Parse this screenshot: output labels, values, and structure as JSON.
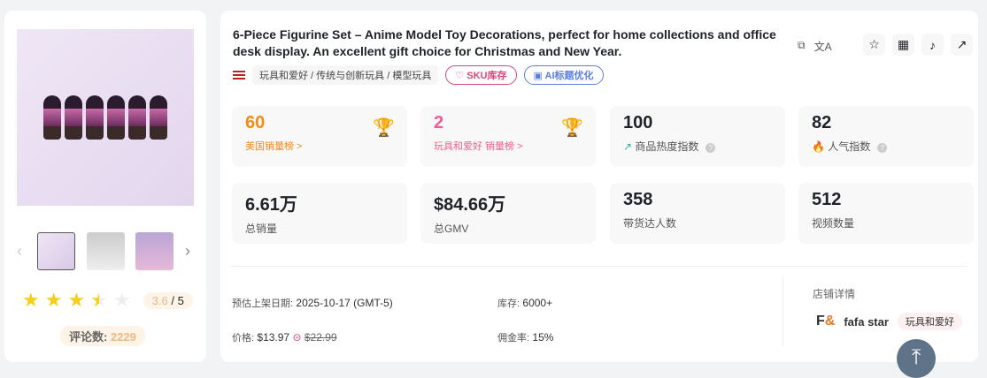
{
  "gallery": {
    "thumb_count": 3,
    "rating": "3.6",
    "rating_max": "/ 5",
    "reviews_label": "评论数:",
    "reviews": "2229"
  },
  "product": {
    "title": "6-Piece Figurine Set – Anime Model Toy Decorations, perfect for home collections and office desk display. An excellent gift choice for Christmas and New Year.",
    "category": "玩具和爱好 / 传统与创新玩具 / 模型玩具",
    "sku_label": "SKU库存",
    "ai_label": "AI标题优化"
  },
  "actions": [
    "star-icon",
    "qr-code-icon",
    "tiktok-icon",
    "external-link-icon"
  ],
  "stats": [
    {
      "value": "60",
      "label": "美国销量榜 >",
      "color": "#f08c1a"
    },
    {
      "value": "2",
      "label": "玩具和爱好 销量榜 >",
      "color": "#ef5f8a"
    },
    {
      "value": "100",
      "label": "商品热度指数"
    },
    {
      "value": "82",
      "label": "人气指数"
    },
    {
      "value": "6.61万",
      "label": "总销量"
    },
    {
      "value": "$84.66万",
      "label": "总GMV"
    },
    {
      "value": "358",
      "label": "带货达人数"
    },
    {
      "value": "512",
      "label": "视频数量"
    }
  ],
  "details": {
    "launch_label": "预估上架日期:",
    "launch": "2025-10-17 (GMT-5)",
    "stock_label": "库存:",
    "stock": "6000+",
    "price_label": "价格:",
    "price": "$13.97",
    "orig_price": "$22.99",
    "commission_label": "佣金率:",
    "commission": "15%"
  },
  "shop": {
    "heading": "店铺详情",
    "name": "fafa star",
    "tag": "玩具和爱好"
  }
}
